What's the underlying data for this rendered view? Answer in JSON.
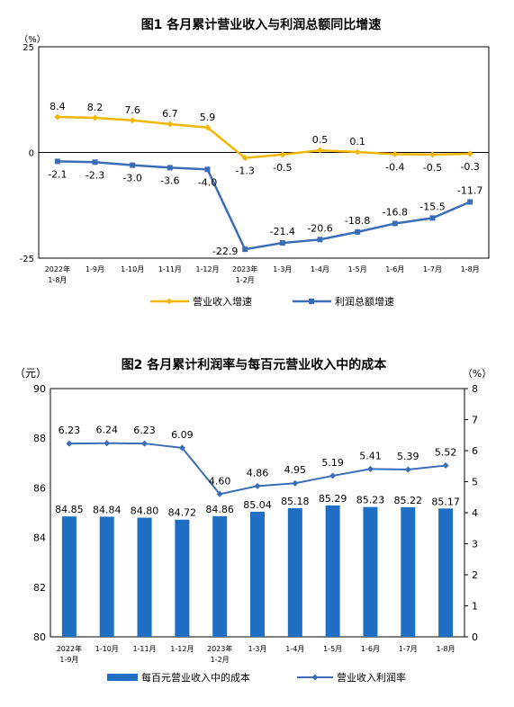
{
  "chart_data": [
    {
      "type": "line",
      "title": "图1  各月累计营业收入与利润总额同比增速",
      "yunit": "（%）",
      "ylim": [
        -25,
        25
      ],
      "yticks": [
        "25",
        "0",
        "-25"
      ],
      "grid": false,
      "legend_position": "bottom",
      "categories": [
        [
          "2022年",
          "1-8月"
        ],
        [
          "1-9月"
        ],
        [
          "1-10月"
        ],
        [
          "1-11月"
        ],
        [
          "1-12月"
        ],
        [
          "2023年",
          "1-2月"
        ],
        [
          "1-3月"
        ],
        [
          "1-4月"
        ],
        [
          "1-5月"
        ],
        [
          "1-6月"
        ],
        [
          "1-7月"
        ],
        [
          "1-8月"
        ]
      ],
      "series": [
        {
          "name": "营业收入增速",
          "color": "#F2B705",
          "values": [
            8.4,
            8.2,
            7.6,
            6.7,
            5.9,
            -1.3,
            -0.5,
            0.5,
            0.1,
            -0.4,
            -0.5,
            -0.3
          ],
          "labels": [
            "8.4",
            "8.2",
            "7.6",
            "6.7",
            "5.9",
            "-1.3",
            "-0.5",
            "0.5",
            "0.1",
            "-0.4",
            "-0.5",
            "-0.3"
          ]
        },
        {
          "name": "利润总额增速",
          "color": "#3A6DB8",
          "values": [
            -2.1,
            -2.3,
            -3.0,
            -3.6,
            -4.0,
            -22.9,
            -21.4,
            -20.6,
            -18.8,
            -16.8,
            -15.5,
            -11.7
          ],
          "labels": [
            "-2.1",
            "-2.3",
            "-3.0",
            "-3.6",
            "-4.0",
            "-22.9",
            "-21.4",
            "-20.6",
            "-18.8",
            "-16.8",
            "-15.5",
            "-11.7"
          ]
        }
      ]
    },
    {
      "type": "bar+line",
      "title": "图2  各月累计利润率与每百元营业收入中的成本",
      "left_unit": "（元）",
      "right_unit": "（%）",
      "left_ylim": [
        80,
        90
      ],
      "left_yticks": [
        "80",
        "82",
        "84",
        "86",
        "88",
        "90"
      ],
      "right_ylim": [
        0,
        8
      ],
      "right_yticks": [
        "0",
        "1",
        "2",
        "3",
        "4",
        "5",
        "6",
        "7",
        "8"
      ],
      "grid": false,
      "legend_position": "bottom",
      "categories": [
        [
          "2022年",
          "1-9月"
        ],
        [
          "1-10月"
        ],
        [
          "1-11月"
        ],
        [
          "1-12月"
        ],
        [
          "2023年",
          "1-2月"
        ],
        [
          "1-3月"
        ],
        [
          "1-4月"
        ],
        [
          "1-5月"
        ],
        [
          "1-6月"
        ],
        [
          "1-7月"
        ],
        [
          "1-8月"
        ]
      ],
      "bars": {
        "name": "每百元营业收入中的成本",
        "color": "#1F6FC5",
        "values": [
          84.85,
          84.84,
          84.8,
          84.72,
          84.86,
          85.04,
          85.18,
          85.29,
          85.23,
          85.22,
          85.17
        ],
        "labels": [
          "84.85",
          "84.84",
          "84.80",
          "84.72",
          "84.86",
          "85.04",
          "85.18",
          "85.29",
          "85.23",
          "85.22",
          "85.17"
        ]
      },
      "line": {
        "name": "营业收入利润率",
        "color": "#3A6DB8",
        "values": [
          6.23,
          6.24,
          6.23,
          6.09,
          4.6,
          4.86,
          4.95,
          5.19,
          5.41,
          5.39,
          5.52
        ],
        "labels": [
          "6.23",
          "6.24",
          "6.23",
          "6.09",
          "4.60",
          "4.86",
          "4.95",
          "5.19",
          "5.41",
          "5.39",
          "5.52"
        ]
      }
    }
  ]
}
